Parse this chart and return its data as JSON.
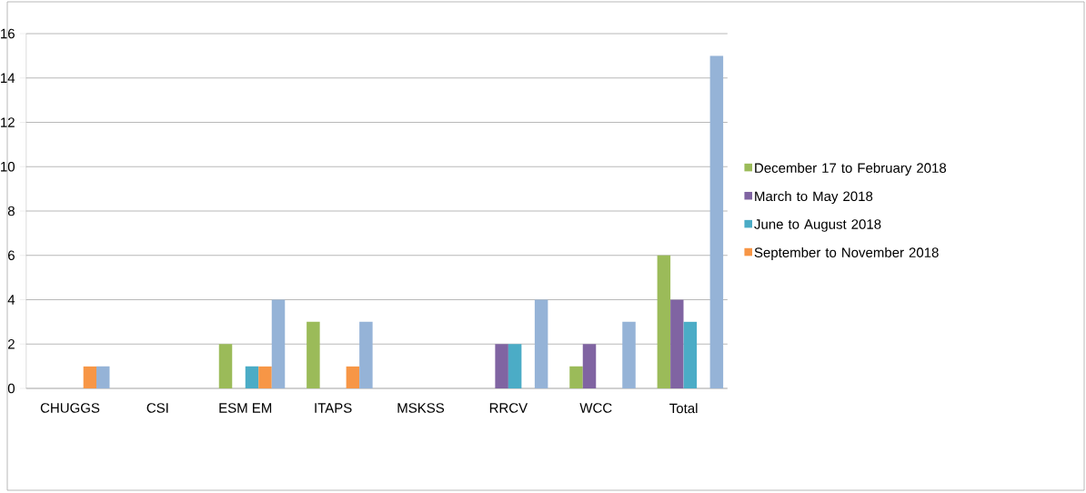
{
  "chart_data": {
    "type": "bar",
    "categories": [
      "CHUGGS",
      "CSI",
      "ESM EM",
      "ITAPS",
      "MSKSS",
      "RRCV",
      "WCC",
      "Total"
    ],
    "series": [
      {
        "name": "December 17 to February 2018",
        "color": "#9bbb59",
        "values": [
          0,
          0,
          2,
          3,
          0,
          0,
          1,
          6
        ]
      },
      {
        "name": "March to May 2018",
        "color": "#8064a2",
        "values": [
          0,
          0,
          0,
          0,
          0,
          2,
          2,
          4
        ]
      },
      {
        "name": "June to August 2018",
        "color": "#4bacc6",
        "values": [
          0,
          0,
          1,
          0,
          0,
          2,
          0,
          3
        ]
      },
      {
        "name": "September to November 2018",
        "color": "#f79646",
        "values": [
          1,
          0,
          1,
          1,
          0,
          0,
          0,
          0
        ]
      },
      {
        "color": "#95b3d7",
        "values": [
          1,
          0,
          4,
          3,
          0,
          4,
          3,
          15
        ]
      }
    ],
    "ylim": [
      0,
      16
    ],
    "yticks": [
      0,
      2,
      4,
      6,
      8,
      10,
      12,
      14,
      16
    ],
    "grid": "y",
    "legend": "right"
  }
}
